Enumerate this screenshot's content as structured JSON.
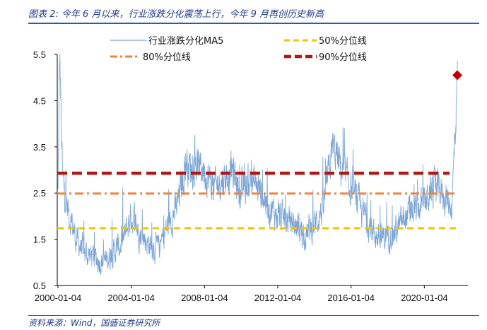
{
  "header": {
    "title": "图表 2:  今年 6 月以来，行业涨跌分化震荡上行，今年 9 月再创历史新高"
  },
  "footer": {
    "source": "资料来源：Wind，国盛证券研究所"
  },
  "colors": {
    "series": "#7ea6d6",
    "p50": "#f5c400",
    "p80": "#f0823c",
    "p90": "#b01818",
    "marker": "#c00000",
    "accent": "#2a5caa"
  },
  "chart_data": {
    "type": "line",
    "title": "",
    "xlabel": "",
    "ylabel": "",
    "ylim": [
      0.5,
      5.5
    ],
    "yticks": [
      "0.5",
      "1.5",
      "2.5",
      "3.5",
      "4.5",
      "5.5"
    ],
    "xticks": [
      "2000-01-04",
      "2004-01-04",
      "2008-01-04",
      "2012-01-04",
      "2016-01-04",
      "2020-01-04"
    ],
    "grid": false,
    "legend": "top",
    "series": [
      {
        "name": "行业涨跌分化MA5",
        "style": "solid",
        "x": [
          2000.0,
          2000.1,
          2000.25,
          2000.5,
          2001.0,
          2001.5,
          2002.0,
          2002.5,
          2003.0,
          2003.5,
          2004.0,
          2004.5,
          2005.0,
          2005.5,
          2006.0,
          2006.5,
          2007.0,
          2007.3,
          2007.6,
          2008.0,
          2008.5,
          2009.0,
          2009.5,
          2010.0,
          2010.5,
          2011.0,
          2011.5,
          2012.0,
          2012.5,
          2013.0,
          2013.5,
          2014.0,
          2014.5,
          2015.0,
          2015.5,
          2016.0,
          2016.5,
          2017.0,
          2017.5,
          2018.0,
          2018.5,
          2019.0,
          2019.5,
          2020.0,
          2020.5,
          2021.0,
          2021.5,
          2021.65,
          2021.8
        ],
        "values": [
          2.5,
          5.5,
          2.8,
          2.2,
          1.5,
          1.2,
          1.1,
          1.0,
          1.2,
          1.4,
          2.0,
          1.6,
          1.4,
          1.3,
          1.8,
          2.2,
          3.2,
          3.0,
          3.1,
          3.0,
          2.6,
          2.8,
          3.0,
          2.5,
          2.8,
          2.6,
          2.2,
          2.0,
          1.9,
          1.8,
          1.6,
          1.8,
          2.2,
          3.5,
          3.0,
          2.6,
          2.2,
          1.8,
          1.5,
          1.6,
          1.7,
          2.0,
          2.1,
          2.3,
          2.6,
          2.5,
          2.2,
          3.5,
          5.0
        ]
      },
      {
        "name": "50%分位线",
        "style": "dashed",
        "value": 1.74
      },
      {
        "name": "80%分位线",
        "style": "dash-dot",
        "value": 2.49
      },
      {
        "name": "90%分位线",
        "style": "dashed-bold",
        "value": 2.93
      }
    ],
    "annotations": [
      {
        "type": "diamond-marker",
        "x": 2021.8,
        "y": 5.05
      }
    ],
    "x_range": [
      2000.0,
      2021.8
    ]
  }
}
